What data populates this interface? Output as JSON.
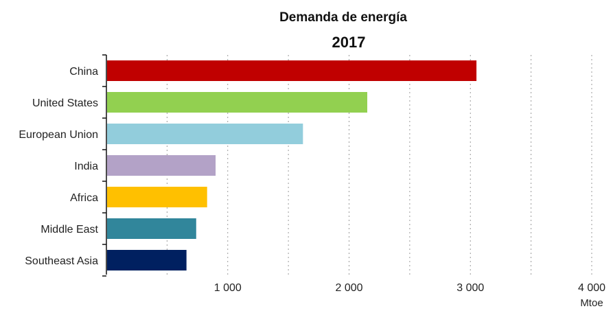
{
  "chart_data": {
    "type": "bar",
    "orientation": "horizontal",
    "title": "Demanda de energía",
    "subtitle": "2017",
    "categories": [
      "China",
      "United States",
      "European Union",
      "India",
      "Africa",
      "Middle East",
      "Southeast Asia"
    ],
    "values": [
      3050,
      2150,
      1620,
      900,
      830,
      740,
      660
    ],
    "colors": [
      "#c00000",
      "#92d050",
      "#92cddc",
      "#b3a2c7",
      "#ffc000",
      "#31869b",
      "#002060"
    ],
    "xlim": [
      0,
      4000
    ],
    "xticks": [
      1000,
      2000,
      3000,
      4000
    ],
    "xtick_labels": [
      "1 000",
      "2 000",
      "3 000",
      "4 000"
    ],
    "grid_values": [
      500,
      1000,
      1500,
      2000,
      2500,
      3000,
      3500,
      4000
    ],
    "xlabel": "Mtoe",
    "grid": true
  }
}
